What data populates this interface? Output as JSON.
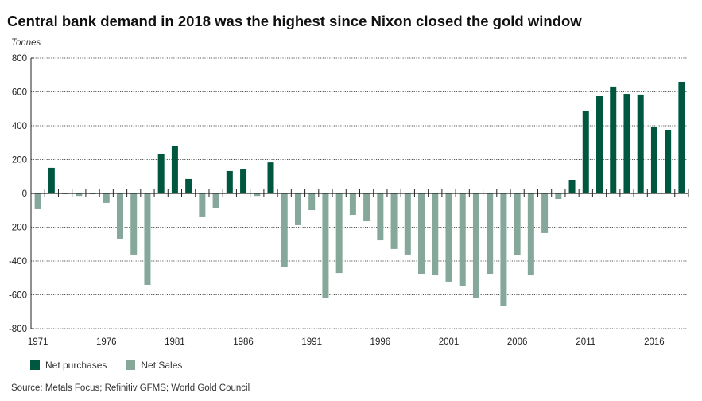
{
  "chart_data": {
    "type": "bar",
    "title": "Central bank demand in 2018 was the highest since Nixon closed the gold window",
    "ylabel": "Tonnes",
    "xlabel": "",
    "ylim": [
      -800,
      800
    ],
    "yticks": [
      800,
      600,
      400,
      200,
      0,
      -200,
      -400,
      -600,
      -800
    ],
    "ytick_labels": [
      "800",
      "600",
      "400",
      "200",
      "0",
      "-200",
      "-400",
      "-600",
      "-800"
    ],
    "xtick_labels": [
      "1971",
      "1976",
      "1981",
      "1986",
      "1991",
      "1996",
      "2001",
      "2006",
      "2011",
      "2016"
    ],
    "grid": true,
    "legend_position": "bottom-left",
    "categories": [
      1971,
      1972,
      1973,
      1974,
      1975,
      1976,
      1977,
      1978,
      1979,
      1980,
      1981,
      1982,
      1983,
      1984,
      1985,
      1986,
      1987,
      1988,
      1989,
      1990,
      1991,
      1992,
      1993,
      1994,
      1995,
      1996,
      1997,
      1998,
      1999,
      2000,
      2001,
      2002,
      2003,
      2004,
      2005,
      2006,
      2007,
      2008,
      2009,
      2010,
      2011,
      2012,
      2013,
      2014,
      2015,
      2016,
      2017,
      2018
    ],
    "values": [
      -94,
      151,
      -5,
      -15,
      -5,
      -56,
      -268,
      -362,
      -541,
      231,
      278,
      85,
      -141,
      -85,
      132,
      141,
      -15,
      183,
      -433,
      -188,
      -99,
      -621,
      -471,
      -127,
      -165,
      -278,
      -329,
      -362,
      -480,
      -485,
      -522,
      -550,
      -621,
      -480,
      -668,
      -367,
      -485,
      -235,
      -33,
      80,
      485,
      574,
      631,
      588,
      584,
      395,
      376,
      659
    ],
    "series": [
      {
        "name": "Net purchases",
        "color": "#00573f",
        "rule": "value >= 0"
      },
      {
        "name": "Net Sales",
        "color": "#85a89a",
        "rule": "value < 0"
      }
    ]
  },
  "legend": {
    "items": [
      {
        "label": "Net purchases",
        "color": "#00573f"
      },
      {
        "label": "Net Sales",
        "color": "#85a89a"
      }
    ]
  },
  "source": "Source: Metals Focus; Refinitiv GFMS; World Gold Council"
}
